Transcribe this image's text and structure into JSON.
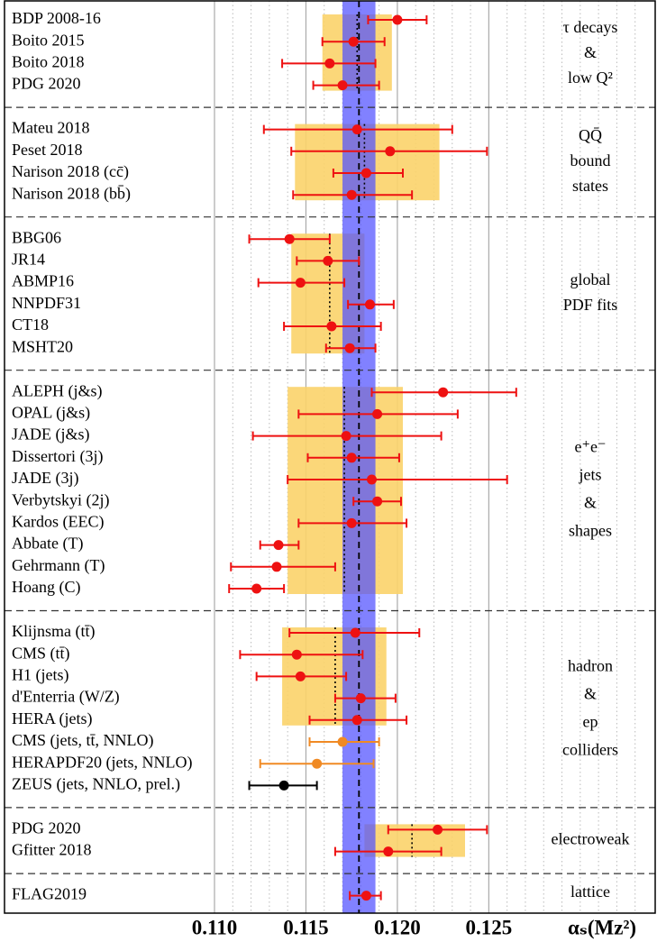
{
  "chart_data": {
    "type": "errorbar",
    "xlabel": "αₛ(Mᴢ²)",
    "xlim": [
      0.11,
      0.134
    ],
    "xticks": [
      {
        "value": 0.11,
        "label": "0.110"
      },
      {
        "value": 0.115,
        "label": "0.115"
      },
      {
        "value": 0.12,
        "label": "0.120"
      },
      {
        "value": 0.125,
        "label": "0.125"
      }
    ],
    "minor_xticks": [
      0.111,
      0.112,
      0.113,
      0.114,
      0.116,
      0.117,
      0.118,
      0.119,
      0.121,
      0.122,
      0.123,
      0.124,
      0.126,
      0.127,
      0.128,
      0.129,
      0.13,
      0.131,
      0.132,
      0.133
    ],
    "band": {
      "center": 0.1179,
      "low": 0.117,
      "high": 0.1188,
      "color": "#5050ff"
    },
    "groups": [
      {
        "label": [
          "τ decays",
          "&",
          "low Q²"
        ],
        "average": 0.1178,
        "box": [
          0.1159,
          0.1197
        ],
        "rows": [
          {
            "name": "BDP 2008-16",
            "value": 0.12,
            "low": 0.1184,
            "high": 0.1216,
            "color": "#ee1111"
          },
          {
            "name": "Boito 2015",
            "value": 0.1176,
            "low": 0.1159,
            "high": 0.1193,
            "color": "#ee1111"
          },
          {
            "name": "Boito 2018",
            "value": 0.1163,
            "low": 0.1137,
            "high": 0.1188,
            "color": "#ee1111"
          },
          {
            "name": "PDG 2020",
            "value": 0.117,
            "low": 0.1154,
            "high": 0.119,
            "color": "#ee1111"
          }
        ]
      },
      {
        "label": [
          "QQ̄",
          "bound",
          "states"
        ],
        "average": 0.1182,
        "box": [
          0.1144,
          0.1223
        ],
        "rows": [
          {
            "name": "Mateu 2018",
            "value": 0.1178,
            "low": 0.1127,
            "high": 0.123,
            "color": "#ee1111"
          },
          {
            "name": "Peset 2018",
            "value": 0.1196,
            "low": 0.1142,
            "high": 0.1249,
            "color": "#ee1111"
          },
          {
            "name": "Narison 2018 (cc̄)",
            "value": 0.1183,
            "low": 0.1165,
            "high": 0.1203,
            "color": "#ee1111"
          },
          {
            "name": "Narison 2018 (bb̄)",
            "value": 0.1175,
            "low": 0.1143,
            "high": 0.1208,
            "color": "#ee1111"
          }
        ]
      },
      {
        "label": [
          "global",
          "PDF fits"
        ],
        "average": 0.1163,
        "box": [
          0.1142,
          0.1182
        ],
        "rows": [
          {
            "name": "BBG06",
            "value": 0.1141,
            "low": 0.1119,
            "high": 0.1163,
            "color": "#ee1111"
          },
          {
            "name": "JR14",
            "value": 0.1162,
            "low": 0.1145,
            "high": 0.1179,
            "color": "#ee1111"
          },
          {
            "name": "ABMP16",
            "value": 0.1147,
            "low": 0.1124,
            "high": 0.1171,
            "color": "#ee1111"
          },
          {
            "name": "NNPDF31",
            "value": 0.1185,
            "low": 0.1173,
            "high": 0.1198,
            "color": "#ee1111"
          },
          {
            "name": "CT18",
            "value": 0.1164,
            "low": 0.1138,
            "high": 0.1191,
            "color": "#ee1111"
          },
          {
            "name": "MSHT20",
            "value": 0.1174,
            "low": 0.1161,
            "high": 0.1188,
            "color": "#ee1111"
          }
        ]
      },
      {
        "label": [
          "e⁺e⁻",
          "jets",
          "&",
          "shapes"
        ],
        "average": 0.1171,
        "box": [
          0.114,
          0.1203
        ],
        "rows": [
          {
            "name": "ALEPH (j&s)",
            "value": 0.1225,
            "low": 0.1186,
            "high": 0.1265,
            "color": "#ee1111"
          },
          {
            "name": "OPAL (j&s)",
            "value": 0.1189,
            "low": 0.1146,
            "high": 0.1233,
            "color": "#ee1111"
          },
          {
            "name": "JADE (j&s)",
            "value": 0.1172,
            "low": 0.1121,
            "high": 0.1224,
            "color": "#ee1111"
          },
          {
            "name": "Dissertori (3j)",
            "value": 0.1175,
            "low": 0.1151,
            "high": 0.1201,
            "color": "#ee1111"
          },
          {
            "name": "JADE (3j)",
            "value": 0.1186,
            "low": 0.114,
            "high": 0.126,
            "color": "#ee1111"
          },
          {
            "name": "Verbytskyi (2j)",
            "value": 0.1189,
            "low": 0.1176,
            "high": 0.1202,
            "color": "#ee1111"
          },
          {
            "name": "Kardos (EEC)",
            "value": 0.1175,
            "low": 0.1146,
            "high": 0.1205,
            "color": "#ee1111"
          },
          {
            "name": "Abbate (T)",
            "value": 0.1135,
            "low": 0.1125,
            "high": 0.1146,
            "color": "#ee1111"
          },
          {
            "name": "Gehrmann (T)",
            "value": 0.1134,
            "low": 0.1109,
            "high": 0.1166,
            "color": "#ee1111"
          },
          {
            "name": "Hoang (C)",
            "value": 0.1123,
            "low": 0.1108,
            "high": 0.1138,
            "color": "#ee1111"
          }
        ]
      },
      {
        "label": [
          "hadron",
          "&",
          "ep",
          "colliders"
        ],
        "average": 0.1166,
        "box": [
          0.1137,
          0.1194
        ],
        "box_rows": 5,
        "rows": [
          {
            "name": "Klijnsma (tt̄)",
            "value": 0.1177,
            "low": 0.1141,
            "high": 0.1212,
            "color": "#ee1111"
          },
          {
            "name": "CMS (tt̄)",
            "value": 0.1145,
            "low": 0.1114,
            "high": 0.1181,
            "color": "#ee1111"
          },
          {
            "name": "H1 (jets)",
            "value": 0.1147,
            "low": 0.1123,
            "high": 0.1172,
            "color": "#ee1111"
          },
          {
            "name": "d'Enterria (W/Z)",
            "value": 0.118,
            "low": 0.1166,
            "high": 0.1199,
            "color": "#ee1111"
          },
          {
            "name": "HERA (jets)",
            "value": 0.1178,
            "low": 0.1152,
            "high": 0.1205,
            "color": "#ee1111"
          },
          {
            "name": "CMS (jets, tt̄, NNLO)",
            "value": 0.117,
            "low": 0.1152,
            "high": 0.119,
            "color": "#f08a24"
          },
          {
            "name": "HERAPDF20 (jets, NNLO)",
            "value": 0.1156,
            "low": 0.1125,
            "high": 0.1187,
            "color": "#f08a24"
          },
          {
            "name": "ZEUS (jets, NNLO, prel.)",
            "value": 0.1138,
            "low": 0.1119,
            "high": 0.1156,
            "color": "#000000"
          }
        ]
      },
      {
        "label": [
          "electroweak"
        ],
        "average": 0.1208,
        "box": [
          0.1182,
          0.1237
        ],
        "rows": [
          {
            "name": "PDG 2020",
            "value": 0.1222,
            "low": 0.1195,
            "high": 0.1249,
            "color": "#ee1111"
          },
          {
            "name": "Gfitter 2018",
            "value": 0.1195,
            "low": 0.1166,
            "high": 0.1224,
            "color": "#ee1111"
          }
        ]
      },
      {
        "label": [
          "lattice"
        ],
        "rows": [
          {
            "name": "FLAG2019",
            "value": 0.1183,
            "low": 0.1174,
            "high": 0.1191,
            "color": "#ee1111"
          }
        ]
      }
    ]
  }
}
